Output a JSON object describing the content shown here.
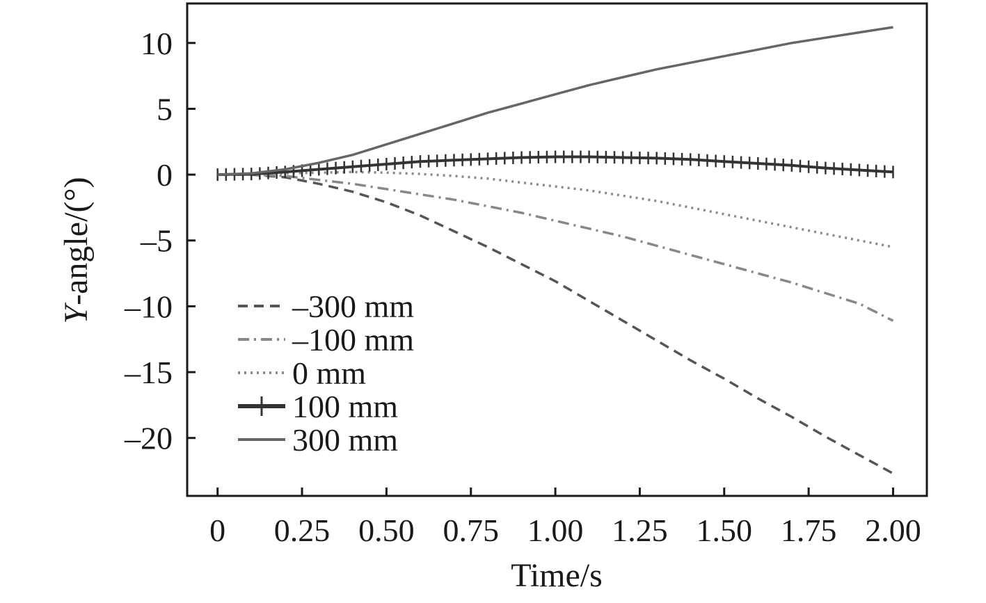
{
  "chart_data": {
    "type": "line",
    "title": "",
    "xlabel": "Time/s",
    "ylabel_italic": "Y",
    "ylabel_rest": "-angle/(°)",
    "xlim": [
      -0.09,
      2.1
    ],
    "ylim": [
      -24.4,
      13
    ],
    "x_ticks": [
      0,
      0.25,
      0.5,
      0.75,
      1.0,
      1.25,
      1.5,
      1.75,
      2.0
    ],
    "x_tick_labels": [
      "0",
      "0.25",
      "0.50",
      "0.75",
      "1.00",
      "1.25",
      "1.50",
      "1.75",
      "2.00"
    ],
    "y_ticks": [
      10,
      5,
      0,
      -5,
      -10,
      -15,
      -20
    ],
    "y_tick_labels": [
      "10",
      "5",
      "0",
      "–5",
      "–10",
      "–15",
      "–20"
    ],
    "grid": false,
    "legend_position": "bottom-left",
    "series": [
      {
        "name": "–300 mm",
        "style": "dashed",
        "color": "#555555",
        "x": [
          0,
          0.1,
          0.2,
          0.3,
          0.4,
          0.5,
          0.6,
          0.7,
          0.8,
          0.9,
          1.0,
          1.1,
          1.2,
          1.3,
          1.4,
          1.5,
          1.6,
          1.7,
          1.8,
          1.9,
          2.0
        ],
        "values": [
          0,
          0,
          -0.2,
          -0.7,
          -1.3,
          -2.1,
          -3.1,
          -4.3,
          -5.5,
          -6.8,
          -8.1,
          -9.6,
          -11.1,
          -12.6,
          -14.1,
          -15.5,
          -17.0,
          -18.4,
          -19.9,
          -21.3,
          -22.7
        ]
      },
      {
        "name": "–100 mm",
        "style": "dashdot",
        "color": "#888888",
        "x": [
          0,
          0.1,
          0.2,
          0.3,
          0.4,
          0.5,
          0.6,
          0.7,
          0.8,
          0.9,
          1.0,
          1.1,
          1.2,
          1.3,
          1.4,
          1.5,
          1.6,
          1.7,
          1.8,
          1.9,
          2.0
        ],
        "values": [
          0,
          0,
          -0.1,
          -0.4,
          -0.7,
          -1.1,
          -1.5,
          -1.9,
          -2.4,
          -2.9,
          -3.5,
          -4.1,
          -4.7,
          -5.4,
          -6.1,
          -6.8,
          -7.5,
          -8.2,
          -9.0,
          -9.8,
          -11.1
        ]
      },
      {
        "name": "0 mm",
        "style": "dotted",
        "color": "#8a8a8a",
        "x": [
          0,
          0.1,
          0.2,
          0.3,
          0.4,
          0.5,
          0.6,
          0.7,
          0.8,
          0.9,
          1.0,
          1.1,
          1.2,
          1.3,
          1.4,
          1.5,
          1.6,
          1.7,
          1.8,
          1.9,
          2.0
        ],
        "values": [
          0,
          0.05,
          0.1,
          0.15,
          0.2,
          0.15,
          0.05,
          -0.1,
          -0.3,
          -0.6,
          -0.9,
          -1.2,
          -1.6,
          -2.0,
          -2.5,
          -3.0,
          -3.5,
          -4.0,
          -4.5,
          -5.0,
          -5.5
        ]
      },
      {
        "name": "100 mm",
        "style": "solid-cross",
        "color": "#333333",
        "x": [
          0,
          0.1,
          0.2,
          0.3,
          0.4,
          0.5,
          0.6,
          0.7,
          0.8,
          0.9,
          1.0,
          1.1,
          1.2,
          1.3,
          1.4,
          1.5,
          1.6,
          1.7,
          1.8,
          1.9,
          2.0
        ],
        "values": [
          0,
          0.05,
          0.2,
          0.4,
          0.6,
          0.8,
          1.0,
          1.1,
          1.2,
          1.3,
          1.35,
          1.35,
          1.3,
          1.25,
          1.15,
          1.0,
          0.85,
          0.7,
          0.5,
          0.35,
          0.2
        ]
      },
      {
        "name": "300 mm",
        "style": "solid",
        "color": "#666666",
        "x": [
          0,
          0.1,
          0.2,
          0.3,
          0.4,
          0.5,
          0.6,
          0.7,
          0.8,
          0.9,
          1.0,
          1.1,
          1.2,
          1.3,
          1.4,
          1.5,
          1.6,
          1.7,
          1.8,
          1.9,
          2.0
        ],
        "values": [
          0,
          0.1,
          0.4,
          0.9,
          1.5,
          2.3,
          3.1,
          3.9,
          4.7,
          5.4,
          6.1,
          6.8,
          7.4,
          8.0,
          8.5,
          9.0,
          9.5,
          10.0,
          10.4,
          10.8,
          11.2
        ]
      }
    ]
  }
}
